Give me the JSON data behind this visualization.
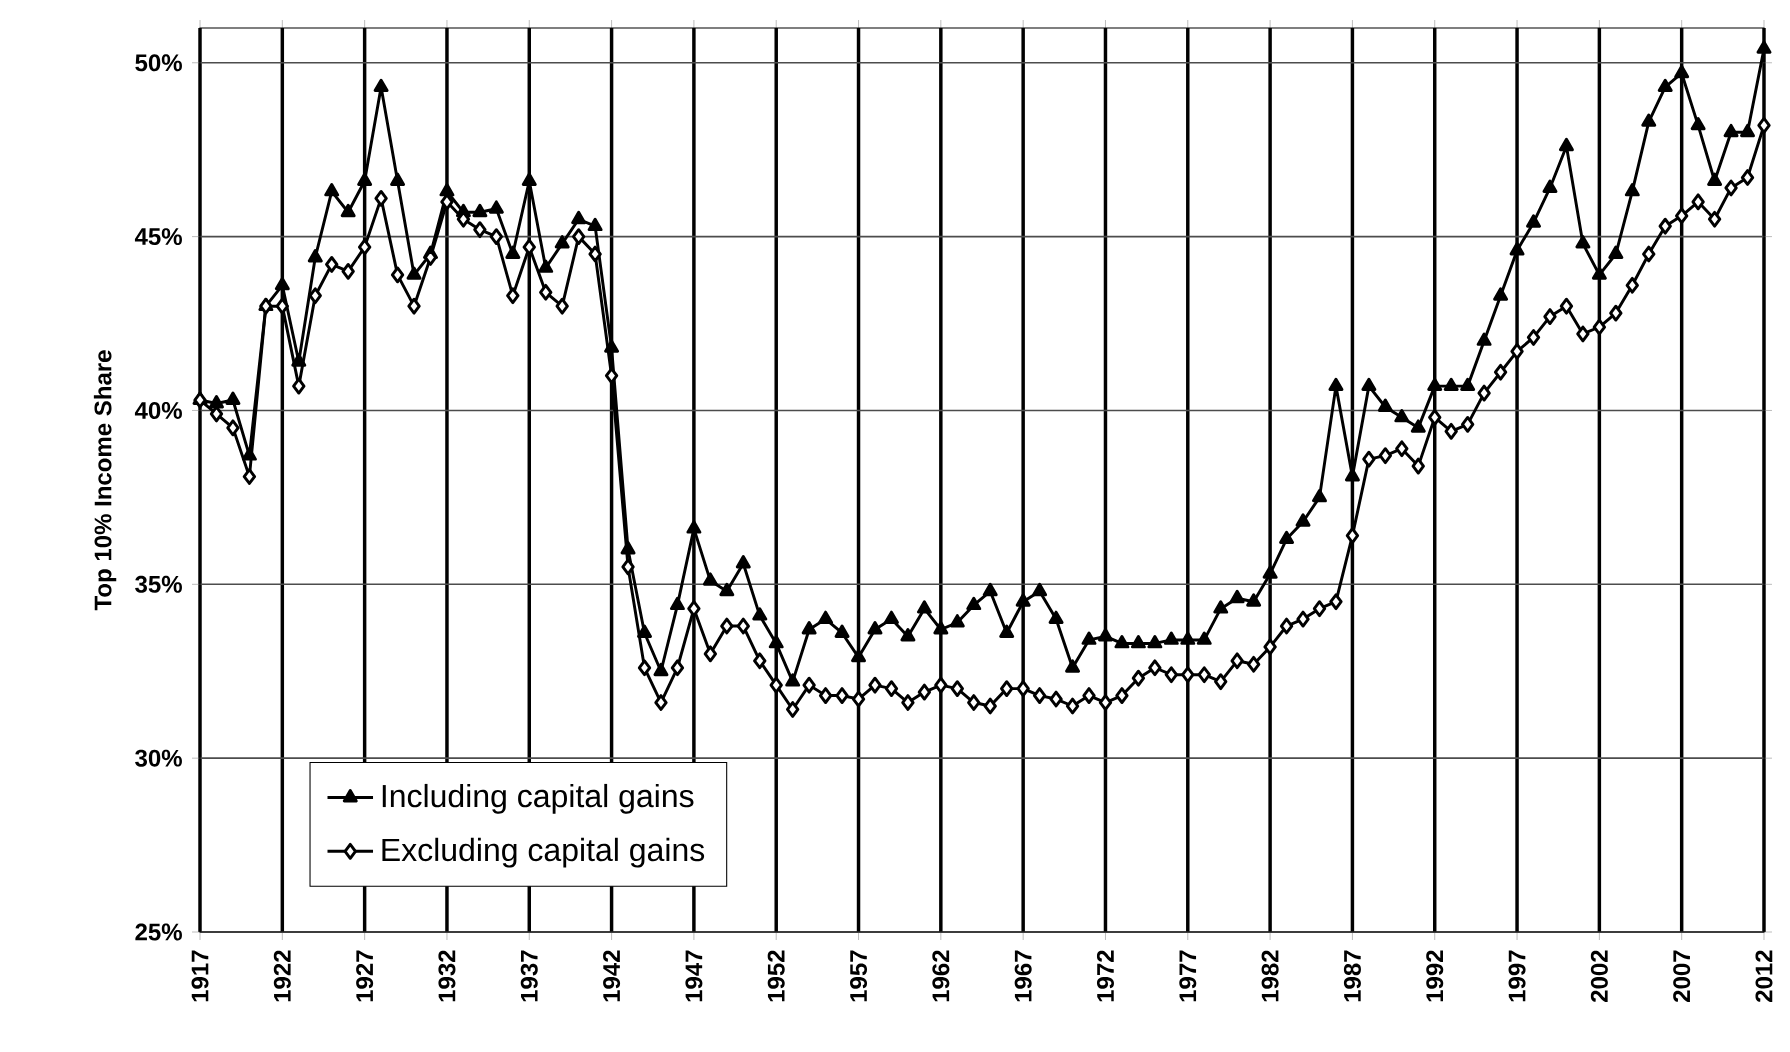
{
  "chart_data": {
    "type": "line",
    "ylabel": "Top 10% Income Share",
    "x": [
      1917,
      1918,
      1919,
      1920,
      1921,
      1922,
      1923,
      1924,
      1925,
      1926,
      1927,
      1928,
      1929,
      1930,
      1931,
      1932,
      1933,
      1934,
      1935,
      1936,
      1937,
      1938,
      1939,
      1940,
      1941,
      1942,
      1943,
      1944,
      1945,
      1946,
      1947,
      1948,
      1949,
      1950,
      1951,
      1952,
      1953,
      1954,
      1955,
      1956,
      1957,
      1958,
      1959,
      1960,
      1961,
      1962,
      1963,
      1964,
      1965,
      1966,
      1967,
      1968,
      1969,
      1970,
      1971,
      1972,
      1973,
      1974,
      1975,
      1976,
      1977,
      1978,
      1979,
      1980,
      1981,
      1982,
      1983,
      1984,
      1985,
      1986,
      1987,
      1988,
      1989,
      1990,
      1991,
      1992,
      1993,
      1994,
      1995,
      1996,
      1997,
      1998,
      1999,
      2000,
      2001,
      2002,
      2003,
      2004,
      2005,
      2006,
      2007,
      2008,
      2009,
      2010,
      2011,
      2012
    ],
    "series": [
      {
        "name": "Including capital gains",
        "color": "#000000",
        "marker": "triangle",
        "values": [
          40.3,
          40.2,
          40.3,
          38.7,
          43.0,
          43.6,
          41.4,
          44.4,
          46.3,
          45.7,
          46.6,
          49.3,
          46.6,
          43.9,
          44.5,
          46.3,
          45.7,
          45.7,
          45.8,
          44.5,
          46.6,
          44.1,
          44.8,
          45.5,
          45.3,
          41.8,
          36.0,
          33.6,
          32.5,
          34.4,
          36.6,
          35.1,
          34.8,
          35.6,
          34.1,
          33.3,
          32.2,
          33.7,
          34.0,
          33.6,
          32.9,
          33.7,
          34.0,
          33.5,
          34.3,
          33.7,
          33.9,
          34.4,
          34.8,
          33.6,
          34.5,
          34.8,
          34.0,
          32.6,
          33.4,
          33.5,
          33.3,
          33.3,
          33.3,
          33.4,
          33.4,
          33.4,
          34.3,
          34.6,
          34.5,
          35.3,
          36.3,
          36.8,
          37.5,
          40.7,
          38.1,
          40.7,
          40.1,
          39.8,
          39.5,
          40.7,
          40.7,
          40.7,
          42.0,
          43.3,
          44.6,
          45.4,
          46.4,
          47.6,
          44.8,
          43.9,
          44.5,
          46.3,
          48.3,
          49.3,
          49.7,
          48.2,
          46.6,
          48.0,
          48.0,
          50.4
        ]
      },
      {
        "name": "Excluding capital gains",
        "color": "#000000",
        "marker": "diamond",
        "values": [
          40.3,
          39.9,
          39.5,
          38.1,
          43.0,
          43.0,
          40.7,
          43.3,
          44.2,
          44.0,
          44.7,
          46.1,
          43.9,
          43.0,
          44.4,
          46.0,
          45.5,
          45.2,
          45.0,
          43.3,
          44.7,
          43.4,
          43.0,
          45.0,
          44.5,
          41.0,
          35.5,
          32.6,
          31.6,
          32.6,
          34.3,
          33.0,
          33.8,
          33.8,
          32.8,
          32.1,
          31.4,
          32.1,
          31.8,
          31.8,
          31.7,
          32.1,
          32.0,
          31.6,
          31.9,
          32.1,
          32.0,
          31.6,
          31.5,
          32.0,
          32.0,
          31.8,
          31.7,
          31.5,
          31.8,
          31.6,
          31.8,
          32.3,
          32.6,
          32.4,
          32.4,
          32.4,
          32.2,
          32.8,
          32.7,
          33.2,
          33.8,
          34.0,
          34.3,
          34.5,
          36.4,
          38.6,
          38.7,
          38.9,
          38.4,
          39.8,
          39.4,
          39.6,
          40.5,
          41.1,
          41.7,
          42.1,
          42.7,
          43.0,
          42.2,
          42.4,
          42.8,
          43.6,
          44.5,
          45.3,
          45.6,
          46.0,
          45.5,
          46.4,
          46.7,
          48.2
        ]
      }
    ],
    "xlim": [
      1917,
      2012
    ],
    "xticks": [
      1917,
      1922,
      1927,
      1932,
      1937,
      1942,
      1947,
      1952,
      1957,
      1962,
      1967,
      1972,
      1977,
      1982,
      1987,
      1992,
      1997,
      2002,
      2007,
      2012
    ],
    "ylim": [
      25,
      51
    ],
    "yticks": [
      {
        "value": 25,
        "label": "25%"
      },
      {
        "value": 30,
        "label": "30%"
      },
      {
        "value": 35,
        "label": "35%"
      },
      {
        "value": 40,
        "label": "40%"
      },
      {
        "value": 45,
        "label": "45%"
      },
      {
        "value": 50,
        "label": "50%"
      }
    ],
    "grid": true,
    "legend": "bottom left",
    "line_style": "solid"
  }
}
